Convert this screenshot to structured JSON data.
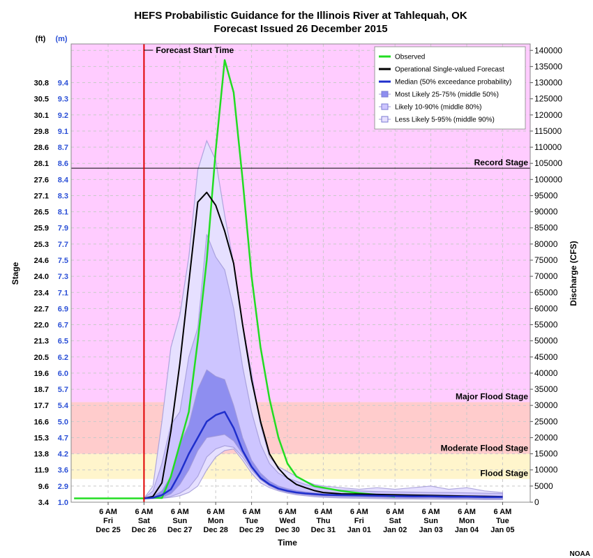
{
  "chart_data": {
    "type": "line",
    "title": "HEFS Probabilistic Guidance for the Illinois River at Tahlequah, OK",
    "subtitle": "Forecast Issued 26 December 2015",
    "xlabel": "Time",
    "ylabel_left": "Stage",
    "ylabel_right": "Discharge (CFS)",
    "left_units_ft": "(ft)",
    "left_units_m": "(m)",
    "ylim": [
      0,
      142000
    ],
    "xlim": [
      -0.95,
      11.3
    ],
    "credit": "NOAA",
    "grid": true,
    "legend_position": "top-right",
    "stage_ticks": [
      {
        "cfs": 0,
        "ft": "3.4",
        "m": "1.0"
      },
      {
        "cfs": 5000,
        "ft": "9.6",
        "m": "2.9"
      },
      {
        "cfs": 10000,
        "ft": "11.9",
        "m": "3.6"
      },
      {
        "cfs": 15000,
        "ft": "13.8",
        "m": "4.2"
      },
      {
        "cfs": 20000,
        "ft": "15.3",
        "m": "4.7"
      },
      {
        "cfs": 25000,
        "ft": "16.6",
        "m": "5.0"
      },
      {
        "cfs": 30000,
        "ft": "17.7",
        "m": "5.4"
      },
      {
        "cfs": 35000,
        "ft": "18.7",
        "m": "5.7"
      },
      {
        "cfs": 40000,
        "ft": "19.6",
        "m": "6.0"
      },
      {
        "cfs": 45000,
        "ft": "20.5",
        "m": "6.2"
      },
      {
        "cfs": 50000,
        "ft": "21.3",
        "m": "6.5"
      },
      {
        "cfs": 55000,
        "ft": "22.0",
        "m": "6.7"
      },
      {
        "cfs": 60000,
        "ft": "22.7",
        "m": "6.9"
      },
      {
        "cfs": 65000,
        "ft": "23.4",
        "m": "7.1"
      },
      {
        "cfs": 70000,
        "ft": "24.0",
        "m": "7.3"
      },
      {
        "cfs": 75000,
        "ft": "24.6",
        "m": "7.5"
      },
      {
        "cfs": 80000,
        "ft": "25.3",
        "m": "7.7"
      },
      {
        "cfs": 85000,
        "ft": "25.9",
        "m": "7.9"
      },
      {
        "cfs": 90000,
        "ft": "26.5",
        "m": "8.1"
      },
      {
        "cfs": 95000,
        "ft": "27.1",
        "m": "8.3"
      },
      {
        "cfs": 100000,
        "ft": "27.6",
        "m": "8.4"
      },
      {
        "cfs": 105000,
        "ft": "28.1",
        "m": "8.6"
      },
      {
        "cfs": 110000,
        "ft": "28.6",
        "m": "8.7"
      },
      {
        "cfs": 115000,
        "ft": "29.8",
        "m": "9.1"
      },
      {
        "cfs": 120000,
        "ft": "30.1",
        "m": "9.2"
      },
      {
        "cfs": 125000,
        "ft": "30.5",
        "m": "9.3"
      },
      {
        "cfs": 130000,
        "ft": "30.8",
        "m": "9.4"
      }
    ],
    "cfs_ticks": [
      0,
      5000,
      10000,
      15000,
      20000,
      25000,
      30000,
      35000,
      40000,
      45000,
      50000,
      55000,
      60000,
      65000,
      70000,
      75000,
      80000,
      85000,
      90000,
      95000,
      100000,
      105000,
      110000,
      115000,
      120000,
      125000,
      130000,
      135000,
      140000
    ],
    "x_ticks": [
      {
        "x": 0,
        "time": "6 AM",
        "day": "Fri",
        "date": "Dec 25"
      },
      {
        "x": 1,
        "time": "6 AM",
        "day": "Sat",
        "date": "Dec 26"
      },
      {
        "x": 2,
        "time": "6 AM",
        "day": "Sun",
        "date": "Dec 27"
      },
      {
        "x": 3,
        "time": "6 AM",
        "day": "Mon",
        "date": "Dec 28"
      },
      {
        "x": 4,
        "time": "6 AM",
        "day": "Tue",
        "date": "Dec 29"
      },
      {
        "x": 5,
        "time": "6 AM",
        "day": "Wed",
        "date": "Dec 30"
      },
      {
        "x": 6,
        "time": "6 AM",
        "day": "Thu",
        "date": "Dec 31"
      },
      {
        "x": 7,
        "time": "6 AM",
        "day": "Fri",
        "date": "Jan 01"
      },
      {
        "x": 8,
        "time": "6 AM",
        "day": "Sat",
        "date": "Jan 02"
      },
      {
        "x": 9,
        "time": "6 AM",
        "day": "Sun",
        "date": "Jan 03"
      },
      {
        "x": 10,
        "time": "6 AM",
        "day": "Mon",
        "date": "Jan 04"
      },
      {
        "x": 11,
        "time": "6 AM",
        "day": "Tue",
        "date": "Jan 05"
      }
    ],
    "forecast_start": {
      "x": 1,
      "label": "Forecast Start Time"
    },
    "stages": [
      {
        "name": "Record Stage",
        "cfs": 103500
      },
      {
        "name": "Major Flood Stage",
        "cfs": 31000
      },
      {
        "name": "Moderate Flood Stage",
        "cfs": 15000
      },
      {
        "name": "Flood Stage",
        "cfs": 7200
      }
    ],
    "stage_colors": {
      "above_major": "#ffccff",
      "major": "#ffcccc",
      "moderate": "#fff5cc",
      "record_line": "#000000",
      "forecast_line": "#e00000"
    },
    "legend": [
      "Observed",
      "Operational Single-valued Forecast",
      "Median (50% exceedance probability)",
      "Most Likely 25-75% (middle 50%)",
      "Likely 10-90% (middle 80%)",
      "Less Likely 5-95% (middle 90%)"
    ],
    "series": [
      {
        "name": "Observed",
        "color": "#22dd22",
        "x": [
          -0.95,
          0.5,
          1.0,
          1.25,
          1.5,
          1.75,
          2.0,
          2.25,
          2.5,
          2.75,
          3.0,
          3.25,
          3.5,
          3.75,
          4.0,
          4.25,
          4.5,
          4.75,
          5.0,
          5.25,
          5.5,
          5.75,
          6.0,
          6.5,
          7.0,
          7.5,
          8.0
        ],
        "y": [
          1200,
          1200,
          1200,
          1400,
          1300,
          8000,
          18000,
          28000,
          50000,
          75000,
          109000,
          137000,
          127000,
          100000,
          70000,
          48000,
          32000,
          20000,
          12000,
          8000,
          6500,
          5000,
          4500,
          3500,
          2800,
          2300,
          1700
        ]
      },
      {
        "name": "Operational Single-valued Forecast",
        "color": "#000000",
        "x": [
          1.0,
          1.25,
          1.5,
          1.75,
          2.0,
          2.25,
          2.5,
          2.75,
          3.0,
          3.25,
          3.5,
          3.75,
          4.0,
          4.25,
          4.5,
          4.75,
          5.0,
          5.25,
          5.5,
          5.75,
          6.0,
          6.5,
          7.0,
          7.5,
          8.0,
          8.5,
          9.0,
          9.5,
          10.0,
          10.5,
          11.0
        ],
        "y": [
          1200,
          1800,
          6000,
          22000,
          43000,
          68000,
          93000,
          96000,
          92000,
          84000,
          74000,
          55000,
          38000,
          25000,
          15000,
          10500,
          7500,
          5500,
          4500,
          3600,
          3000,
          2600,
          2500,
          2400,
          2300,
          2200,
          2100,
          2000,
          1900,
          1800,
          1700
        ]
      },
      {
        "name": "Median (50% exceedance probability)",
        "color": "#1f2fcc",
        "x": [
          1.0,
          1.25,
          1.5,
          1.75,
          2.0,
          2.25,
          2.5,
          2.75,
          3.0,
          3.25,
          3.5,
          3.75,
          4.0,
          4.25,
          4.5,
          4.75,
          5.0,
          5.25,
          5.5,
          5.75,
          6.0,
          6.5,
          7.0,
          7.5,
          8.0,
          8.5,
          9.0,
          9.5,
          10.0,
          10.5,
          11.0
        ],
        "y": [
          1200,
          1400,
          2200,
          4000,
          9000,
          15000,
          20000,
          25000,
          27000,
          28000,
          23000,
          16000,
          11000,
          7500,
          5500,
          4200,
          3500,
          3000,
          2700,
          2500,
          2300,
          2200,
          2100,
          2000,
          1900,
          1800,
          1800,
          1700,
          1700,
          1600,
          1600
        ]
      }
    ],
    "bands": [
      {
        "name": "Less Likely 5-95% (middle 90%)",
        "color": "#e6e0ff",
        "x": [
          1.0,
          1.25,
          1.5,
          1.75,
          2.0,
          2.25,
          2.5,
          2.75,
          3.0,
          3.25,
          3.5,
          3.75,
          4.0,
          4.25,
          4.5,
          4.75,
          5.0,
          5.25,
          5.5,
          5.75,
          6.0,
          6.5,
          7.0,
          7.5,
          8.0,
          8.5,
          9.0,
          9.5,
          10.0,
          10.5,
          11.0
        ],
        "upper": [
          1200,
          5000,
          25000,
          48000,
          58000,
          76000,
          103000,
          112000,
          106000,
          89000,
          74000,
          55000,
          40000,
          24000,
          14000,
          11000,
          9500,
          8000,
          6500,
          5500,
          5000,
          4500,
          4000,
          4500,
          4000,
          4500,
          5000,
          4000,
          4500,
          3500,
          3000
        ],
        "lower": [
          1000,
          1100,
          1200,
          1500,
          2000,
          3000,
          5000,
          10000,
          14000,
          16000,
          16500,
          13000,
          9000,
          6000,
          4500,
          3500,
          2800,
          2300,
          2000,
          1700,
          1500,
          1300,
          1200,
          1100,
          1000,
          1000,
          900,
          900,
          900,
          800,
          800
        ]
      },
      {
        "name": "Likely 10-90% (middle 80%)",
        "color": "#cdc5ff",
        "x": [
          1.0,
          1.25,
          1.5,
          1.75,
          2.0,
          2.25,
          2.5,
          2.75,
          3.0,
          3.25,
          3.5,
          3.75,
          4.0,
          4.25,
          4.5,
          4.75,
          5.0,
          5.25,
          5.5,
          5.75,
          6.0,
          6.5,
          7.0,
          7.5,
          8.0,
          8.5,
          9.0,
          9.5,
          10.0,
          10.5,
          11.0
        ],
        "upper": [
          1200,
          3500,
          12000,
          24000,
          28000,
          45000,
          54000,
          83000,
          76000,
          72000,
          60000,
          42000,
          28000,
          18000,
          12000,
          9000,
          7500,
          6500,
          5500,
          4800,
          4200,
          3800,
          3500,
          3300,
          3200,
          3100,
          3000,
          3000,
          2900,
          2800,
          2700
        ],
        "lower": [
          1050,
          1150,
          1300,
          1800,
          2800,
          4500,
          8000,
          14000,
          16500,
          17500,
          17000,
          14000,
          10000,
          7000,
          5000,
          3800,
          3000,
          2600,
          2300,
          2000,
          1800,
          1600,
          1500,
          1400,
          1300,
          1200,
          1200,
          1100,
          1100,
          1000,
          1000
        ]
      },
      {
        "name": "Most Likely 25-75% (middle 50%)",
        "color": "#8e8ef0",
        "x": [
          1.0,
          1.25,
          1.5,
          1.75,
          2.0,
          2.25,
          2.5,
          2.75,
          3.0,
          3.25,
          3.5,
          3.75,
          4.0,
          4.25,
          4.5,
          4.75,
          5.0,
          5.25,
          5.5,
          5.75,
          6.0,
          6.5,
          7.0,
          7.5,
          8.0,
          8.5,
          9.0,
          9.5,
          10.0,
          10.5,
          11.0
        ],
        "upper": [
          1200,
          1800,
          3500,
          8000,
          18000,
          24000,
          35000,
          41000,
          39000,
          38000,
          30000,
          20000,
          13000,
          9000,
          6500,
          5000,
          4200,
          3600,
          3200,
          2900,
          2700,
          2600,
          2500,
          2400,
          2300,
          2200,
          2100,
          2000,
          2000,
          1900,
          1900
        ],
        "lower": [
          1100,
          1200,
          1500,
          2600,
          5500,
          10000,
          16000,
          20000,
          20500,
          21000,
          19000,
          15000,
          10500,
          7200,
          5200,
          4000,
          3200,
          2800,
          2500,
          2200,
          2000,
          1800,
          1700,
          1600,
          1500,
          1400,
          1400,
          1300,
          1300,
          1200,
          1200
        ]
      }
    ]
  }
}
